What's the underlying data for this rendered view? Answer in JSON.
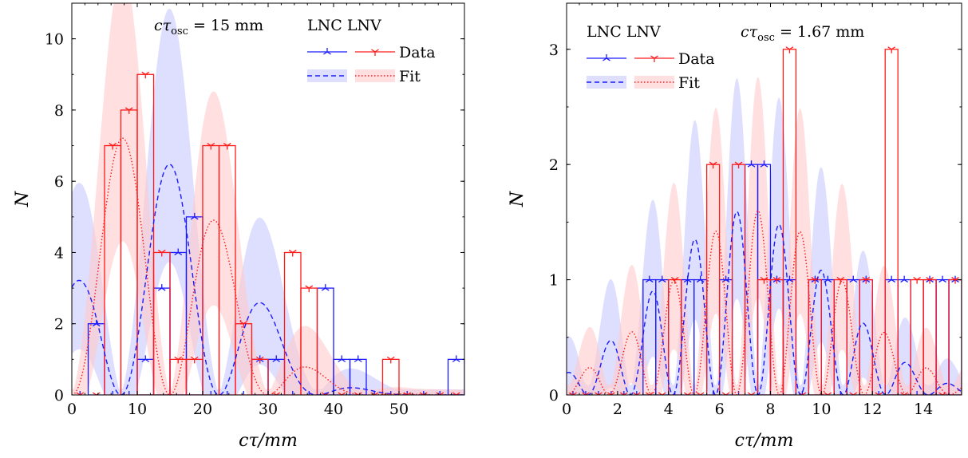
{
  "colors": {
    "lnc": "#1a1aff",
    "lnv": "#ff1a1a",
    "lnc_band": "#c8c8ff",
    "lnv_band": "#ffcaca"
  },
  "chart_data": [
    {
      "type": "area",
      "annotation": "cτ_osc = 15 mm",
      "xlabel": "cτ/mm",
      "ylabel": "N",
      "xlim": [
        0,
        60
      ],
      "ylim": [
        0,
        11
      ],
      "xticks": [
        0,
        10,
        20,
        30,
        40,
        50
      ],
      "yticks": [
        0,
        2,
        4,
        6,
        8,
        10
      ],
      "bin_width": 2.5,
      "legend": {
        "placement": "top-right",
        "headers": [
          "LNC",
          "LNV"
        ],
        "rows": [
          "Data",
          "Fit"
        ]
      },
      "series": [
        {
          "name": "LNC Data",
          "kind": "data",
          "color": "lnc",
          "values": [
            0,
            2,
            0,
            0,
            1,
            3,
            4,
            5,
            0,
            0,
            0,
            1,
            1,
            0,
            0,
            3,
            1,
            1,
            0,
            0,
            0,
            0,
            0,
            1
          ]
        },
        {
          "name": "LNV Data",
          "kind": "data",
          "color": "lnv",
          "values": [
            0,
            0,
            7,
            8,
            9,
            4,
            1,
            1,
            7,
            7,
            2,
            1,
            0,
            4,
            3,
            0,
            0,
            0,
            0,
            1,
            0,
            0,
            0,
            0
          ]
        },
        {
          "name": "LNC Fit",
          "kind": "fit",
          "color": "lnc",
          "band_color": "lnc_band",
          "period": 15,
          "amplitude": 6.5,
          "center": 14,
          "width": 16,
          "phase": 0
        },
        {
          "name": "LNV Fit",
          "kind": "fit",
          "color": "lnv",
          "band_color": "lnv_band",
          "period": 15,
          "amplitude": 7.5,
          "center": 11,
          "width": 17,
          "phase": 7.5
        }
      ]
    },
    {
      "type": "area",
      "annotation": "cτ_osc = 1.67 mm",
      "xlabel": "cτ/mm",
      "ylabel": "N",
      "xlim": [
        0,
        15.5
      ],
      "ylim": [
        0,
        3.4
      ],
      "xticks": [
        0,
        2,
        4,
        6,
        8,
        10,
        12,
        14
      ],
      "yticks": [
        0,
        1,
        2,
        3
      ],
      "bin_width": 0.5,
      "legend": {
        "placement": "top-left",
        "headers": [
          "LNC",
          "LNV"
        ],
        "rows": [
          "Data",
          "Fit"
        ]
      },
      "series": [
        {
          "name": "LNC Data",
          "kind": "data",
          "color": "lnc",
          "values": [
            0,
            0,
            0,
            0,
            0,
            0,
            1,
            1,
            0,
            1,
            1,
            0,
            1,
            0,
            2,
            2,
            1,
            1,
            0,
            1,
            1,
            0,
            1,
            1,
            0,
            1,
            1,
            0,
            1,
            1,
            1
          ]
        },
        {
          "name": "LNV Data",
          "kind": "data",
          "color": "lnv",
          "values": [
            0,
            0,
            0,
            0,
            0,
            0,
            0,
            0,
            1,
            0,
            0,
            2,
            0,
            2,
            0,
            1,
            1,
            3,
            0,
            1,
            0,
            1,
            0,
            1,
            0,
            3,
            0,
            1,
            1,
            0,
            1
          ]
        },
        {
          "name": "LNC Fit",
          "kind": "fit",
          "color": "lnc",
          "band_color": "lnc_band",
          "period": 1.67,
          "amplitude": 1.6,
          "center": 7,
          "width": 4.8,
          "phase": 0
        },
        {
          "name": "LNV Fit",
          "kind": "fit",
          "color": "lnv",
          "band_color": "lnv_band",
          "period": 1.67,
          "amplitude": 1.6,
          "center": 7.5,
          "width": 4.8,
          "phase": 0.83
        }
      ]
    }
  ]
}
